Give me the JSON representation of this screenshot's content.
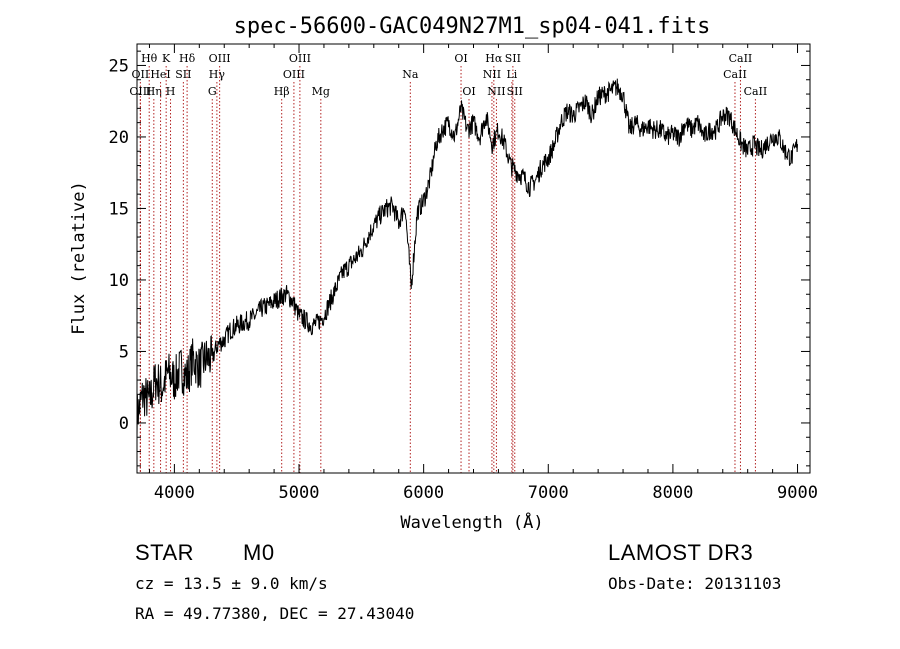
{
  "chart_data": {
    "type": "line",
    "title": "spec-56600-GAC049N27M1_sp04-041.fits",
    "xlabel": "Wavelength (Å)",
    "ylabel": "Flux (relative)",
    "xlim": [
      3700,
      9100
    ],
    "ylim": [
      -3.5,
      26.5
    ],
    "x_ticks": [
      4000,
      5000,
      6000,
      7000,
      8000,
      9000
    ],
    "x_tick_labels": [
      "4000",
      "5000",
      "6000",
      "7000",
      "8000",
      "9000"
    ],
    "y_ticks": [
      0,
      5,
      10,
      15,
      20,
      25
    ],
    "y_tick_labels": [
      "0",
      "5",
      "10",
      "15",
      "20",
      "25"
    ],
    "grid": false,
    "series": [
      {
        "name": "flux",
        "color": "#000000",
        "x": [
          3700,
          3750,
          3800,
          3850,
          3900,
          3950,
          4000,
          4050,
          4100,
          4150,
          4200,
          4250,
          4300,
          4350,
          4400,
          4450,
          4500,
          4550,
          4600,
          4650,
          4700,
          4750,
          4800,
          4850,
          4900,
          4950,
          5000,
          5050,
          5100,
          5150,
          5200,
          5250,
          5300,
          5350,
          5400,
          5450,
          5500,
          5550,
          5600,
          5650,
          5700,
          5750,
          5800,
          5850,
          5900,
          5950,
          6000,
          6050,
          6100,
          6150,
          6200,
          6250,
          6300,
          6350,
          6400,
          6450,
          6500,
          6550,
          6600,
          6650,
          6700,
          6750,
          6800,
          6850,
          6900,
          6950,
          7000,
          7050,
          7100,
          7150,
          7200,
          7250,
          7300,
          7350,
          7400,
          7450,
          7500,
          7550,
          7600,
          7650,
          7700,
          7750,
          7800,
          7850,
          7900,
          7950,
          8000,
          8050,
          8100,
          8150,
          8200,
          8250,
          8300,
          8350,
          8400,
          8450,
          8500,
          8550,
          8600,
          8650,
          8700,
          8750,
          8800,
          8850,
          8900,
          8950,
          9000
        ],
        "y": [
          0.5,
          2.0,
          1.5,
          3.0,
          2.5,
          3.5,
          3.0,
          3.8,
          3.2,
          4.5,
          3.8,
          4.5,
          4.5,
          5.5,
          5.8,
          6.5,
          6.8,
          7.0,
          7.2,
          7.5,
          8.0,
          8.2,
          8.5,
          8.8,
          9.0,
          8.5,
          7.5,
          7.2,
          6.8,
          7.0,
          7.5,
          8.5,
          9.5,
          10.5,
          11.0,
          11.5,
          12.0,
          13.0,
          13.8,
          14.5,
          15.0,
          15.2,
          14.0,
          15.2,
          9.5,
          14.8,
          15.5,
          17.0,
          19.5,
          20.5,
          21.0,
          20.0,
          22.0,
          20.5,
          21.0,
          20.0,
          21.5,
          19.5,
          20.5,
          19.5,
          18.0,
          17.5,
          17.2,
          16.5,
          17.0,
          18.0,
          18.5,
          19.5,
          21.0,
          21.8,
          21.5,
          22.0,
          22.5,
          21.5,
          22.8,
          23.0,
          23.2,
          23.5,
          23.0,
          20.5,
          21.0,
          20.5,
          20.8,
          20.5,
          20.5,
          20.0,
          20.2,
          20.0,
          21.0,
          20.5,
          21.0,
          20.0,
          20.5,
          20.5,
          21.5,
          21.5,
          20.5,
          19.5,
          19.0,
          19.5,
          19.0,
          19.5,
          20.0,
          20.0,
          19.0,
          18.5,
          19.5
        ]
      }
    ],
    "line_markers": [
      {
        "label": "Hθ",
        "wavelength": 3798,
        "row": 1
      },
      {
        "label": "OII",
        "wavelength": 3727,
        "row": 2
      },
      {
        "label": "OIII",
        "wavelength": 3727,
        "row": 3
      },
      {
        "label": "Hη",
        "wavelength": 3835,
        "row": 3
      },
      {
        "label": "HeI",
        "wavelength": 3889,
        "row": 2
      },
      {
        "label": "K",
        "wavelength": 3934,
        "row": 1
      },
      {
        "label": "H",
        "wavelength": 3969,
        "row": 3
      },
      {
        "label": "SII",
        "wavelength": 4072,
        "row": 2
      },
      {
        "label": "Hδ",
        "wavelength": 4102,
        "row": 1
      },
      {
        "label": "OIII",
        "wavelength": 4363,
        "row": 1
      },
      {
        "label": "Hγ",
        "wavelength": 4341,
        "row": 2
      },
      {
        "label": "G",
        "wavelength": 4304,
        "row": 3
      },
      {
        "label": "Hβ",
        "wavelength": 4861,
        "row": 3
      },
      {
        "label": "OIII",
        "wavelength": 5007,
        "row": 1
      },
      {
        "label": "OIII",
        "wavelength": 4959,
        "row": 2
      },
      {
        "label": "Mg",
        "wavelength": 5175,
        "row": 3
      },
      {
        "label": "Na",
        "wavelength": 5893,
        "row": 2
      },
      {
        "label": "OI",
        "wavelength": 6300,
        "row": 1
      },
      {
        "label": "OI",
        "wavelength": 6364,
        "row": 3
      },
      {
        "label": "Hα",
        "wavelength": 6563,
        "row": 1
      },
      {
        "label": "SII",
        "wavelength": 6716,
        "row": 1
      },
      {
        "label": "NII",
        "wavelength": 6548,
        "row": 2
      },
      {
        "label": "Li",
        "wavelength": 6708,
        "row": 2
      },
      {
        "label": "NII",
        "wavelength": 6584,
        "row": 3
      },
      {
        "label": "SII",
        "wavelength": 6731,
        "row": 3
      },
      {
        "label": "CaII",
        "wavelength": 8542,
        "row": 1
      },
      {
        "label": "CaII",
        "wavelength": 8498,
        "row": 2
      },
      {
        "label": "CaII",
        "wavelength": 8662,
        "row": 3
      }
    ]
  },
  "info": {
    "object_type": "STAR",
    "subclass": "M0",
    "survey": "LAMOST DR3",
    "cz": "cz = 13.5 ± 9.0 km/s",
    "obs_date": "Obs-Date: 20131103",
    "coords": "RA =  49.77380, DEC =  27.43040"
  }
}
